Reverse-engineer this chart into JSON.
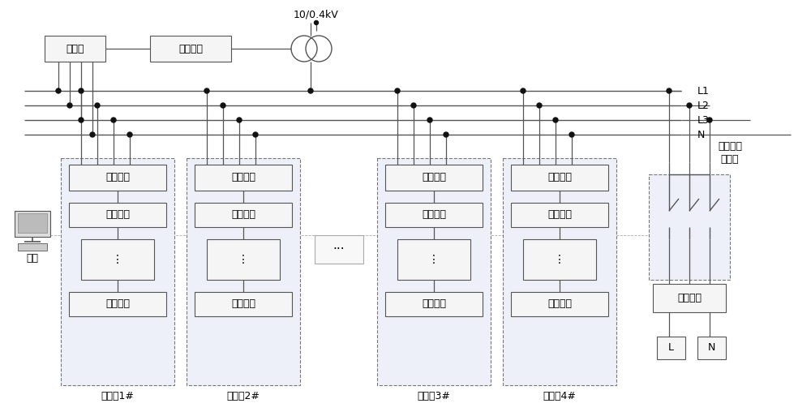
{
  "bg_color": "#ffffff",
  "lc": "#555555",
  "dc": "#111111",
  "title_10kv": "10/0.4kV",
  "label_detector": "检测器",
  "label_leakage": "漏电保护",
  "label_terminal": "终端",
  "label_control_switch": "控制开关",
  "label_user_box": "户配电箱",
  "label_collector": [
    "集表箱1#",
    "集表箱2#",
    "集表箱3#",
    "集表箱4#"
  ],
  "label_L1": "L1",
  "label_L2": "L2",
  "label_L3": "L3",
  "label_N": "N",
  "label_control_schematic_1": "控制开关",
  "label_control_schematic_2": "原理图",
  "label_control_module": "控制模块",
  "label_L": "L",
  "label_N2": "N",
  "label_ellipsis": "···"
}
